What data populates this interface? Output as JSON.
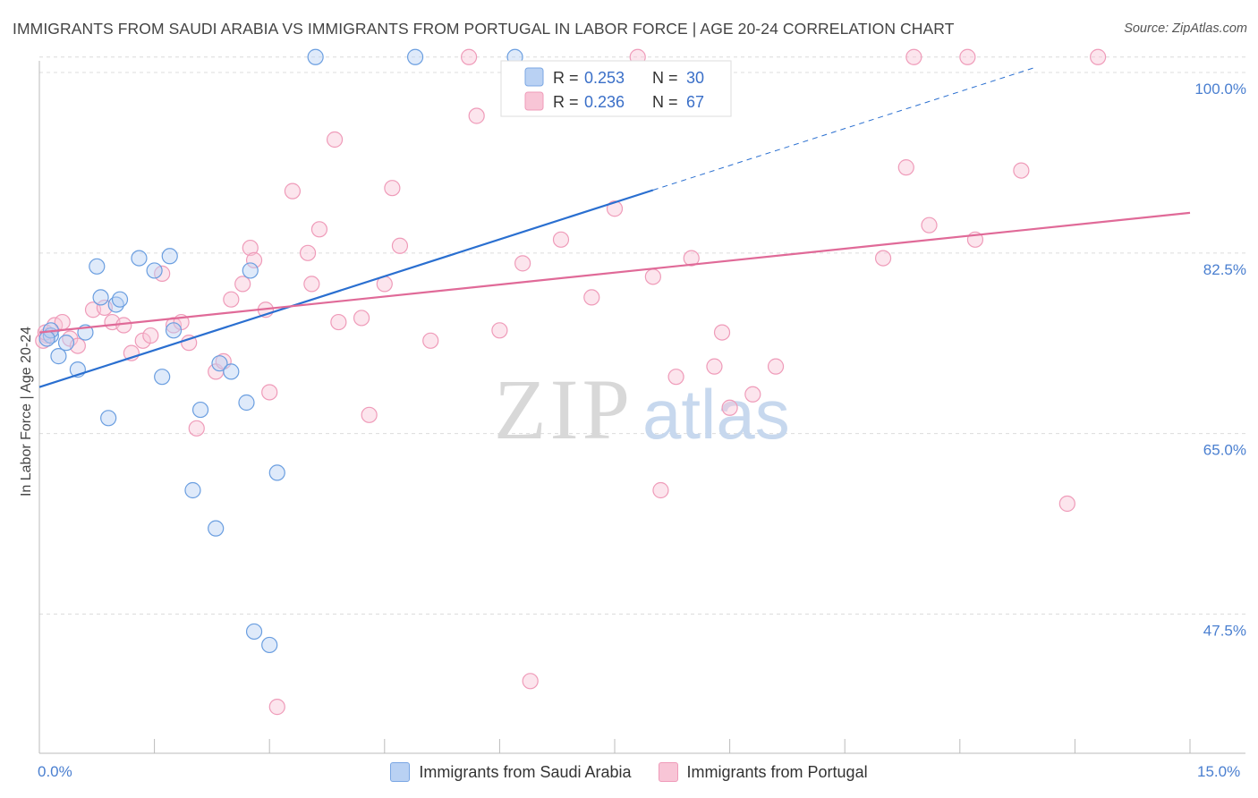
{
  "title": "IMMIGRANTS FROM SAUDI ARABIA VS IMMIGRANTS FROM PORTUGAL IN LABOR FORCE | AGE 20-24 CORRELATION CHART",
  "source": "Source: ZipAtlas.com",
  "watermark": {
    "zip": "ZIP",
    "atlas": "atlas"
  },
  "legend": {
    "r_label": "R =",
    "n_label": "N =",
    "series": [
      {
        "r": "0.253",
        "n": "30"
      },
      {
        "r": "0.236",
        "n": "67"
      }
    ]
  },
  "chart_data": {
    "type": "scatter",
    "xlabel": "",
    "ylabel": "In Labor Force | Age 20-24",
    "xlim": [
      0,
      15
    ],
    "ylim": [
      34,
      102
    ],
    "x_tick_labels": [
      "0.0%",
      "15.0%"
    ],
    "y_ticks": [
      100,
      82.5,
      65,
      47.5
    ],
    "y_tick_labels": [
      "100.0%",
      "82.5%",
      "65.0%",
      "47.5%"
    ],
    "grid": "horizontal dashed",
    "colors": {
      "saudi": "#6a9ee0",
      "portugal": "#f09ab8",
      "saudi_line": "#2a6fd0",
      "portugal_line": "#e06a98"
    },
    "series": [
      {
        "name": "Immigrants from Saudi Arabia",
        "trend": {
          "x0": 0,
          "y0": 69.5,
          "x1": 8.0,
          "y1": 88.6,
          "dashed_to_x": 13.0
        },
        "points": [
          [
            0.15,
            74.5
          ],
          [
            0.25,
            72.5
          ],
          [
            0.35,
            73.8
          ],
          [
            0.5,
            71.2
          ],
          [
            0.6,
            74.8
          ],
          [
            0.75,
            81.2
          ],
          [
            0.8,
            78.2
          ],
          [
            0.9,
            66.5
          ],
          [
            1.0,
            77.5
          ],
          [
            1.05,
            78.0
          ],
          [
            1.3,
            82.0
          ],
          [
            1.5,
            80.8
          ],
          [
            1.6,
            70.5
          ],
          [
            1.7,
            82.2
          ],
          [
            1.75,
            75.0
          ],
          [
            2.0,
            59.5
          ],
          [
            2.1,
            67.3
          ],
          [
            2.3,
            55.8
          ],
          [
            2.35,
            71.8
          ],
          [
            2.5,
            71.0
          ],
          [
            2.7,
            68.0
          ],
          [
            2.75,
            80.8
          ],
          [
            2.8,
            45.8
          ],
          [
            3.0,
            44.5
          ],
          [
            3.1,
            61.2
          ],
          [
            3.6,
            101.5
          ],
          [
            4.9,
            101.5
          ],
          [
            6.2,
            101.5
          ],
          [
            0.15,
            75.0
          ],
          [
            0.1,
            74.2
          ]
        ]
      },
      {
        "name": "Immigrants from Portugal",
        "trend": {
          "x0": 0,
          "y0": 74.8,
          "x1": 15,
          "y1": 86.4
        },
        "points": [
          [
            0.1,
            74.5
          ],
          [
            0.2,
            75.5
          ],
          [
            0.3,
            75.8
          ],
          [
            0.4,
            74.2
          ],
          [
            0.5,
            73.5
          ],
          [
            0.7,
            77.0
          ],
          [
            0.85,
            77.2
          ],
          [
            0.95,
            75.8
          ],
          [
            1.1,
            75.5
          ],
          [
            1.2,
            72.8
          ],
          [
            1.35,
            74.0
          ],
          [
            1.45,
            74.5
          ],
          [
            1.6,
            80.5
          ],
          [
            1.75,
            75.5
          ],
          [
            1.85,
            75.8
          ],
          [
            1.95,
            73.8
          ],
          [
            2.05,
            65.5
          ],
          [
            2.3,
            71.0
          ],
          [
            2.4,
            72.0
          ],
          [
            2.5,
            78.0
          ],
          [
            2.65,
            79.5
          ],
          [
            2.75,
            83.0
          ],
          [
            2.8,
            81.8
          ],
          [
            2.95,
            77.0
          ],
          [
            3.0,
            69.0
          ],
          [
            3.1,
            38.5
          ],
          [
            3.3,
            88.5
          ],
          [
            3.5,
            82.5
          ],
          [
            3.55,
            79.5
          ],
          [
            3.65,
            84.8
          ],
          [
            3.85,
            93.5
          ],
          [
            3.9,
            75.8
          ],
          [
            4.2,
            76.2
          ],
          [
            4.3,
            66.8
          ],
          [
            4.5,
            79.5
          ],
          [
            4.6,
            88.8
          ],
          [
            4.7,
            83.2
          ],
          [
            5.1,
            74.0
          ],
          [
            5.6,
            101.5
          ],
          [
            5.7,
            95.8
          ],
          [
            6.0,
            75.0
          ],
          [
            6.3,
            81.5
          ],
          [
            6.4,
            41.0
          ],
          [
            6.8,
            83.8
          ],
          [
            7.2,
            78.2
          ],
          [
            7.5,
            86.8
          ],
          [
            7.8,
            101.5
          ],
          [
            8.0,
            80.2
          ],
          [
            8.1,
            59.5
          ],
          [
            8.3,
            70.5
          ],
          [
            8.5,
            82.0
          ],
          [
            8.8,
            71.5
          ],
          [
            8.9,
            74.8
          ],
          [
            9.0,
            67.5
          ],
          [
            9.3,
            68.8
          ],
          [
            9.6,
            71.5
          ],
          [
            11.0,
            82.0
          ],
          [
            11.3,
            90.8
          ],
          [
            11.4,
            101.5
          ],
          [
            11.6,
            85.2
          ],
          [
            12.1,
            101.5
          ],
          [
            12.2,
            83.8
          ],
          [
            12.8,
            90.5
          ],
          [
            13.4,
            58.2
          ],
          [
            13.8,
            101.5
          ],
          [
            0.05,
            74.0
          ],
          [
            0.08,
            74.8
          ]
        ]
      }
    ]
  }
}
